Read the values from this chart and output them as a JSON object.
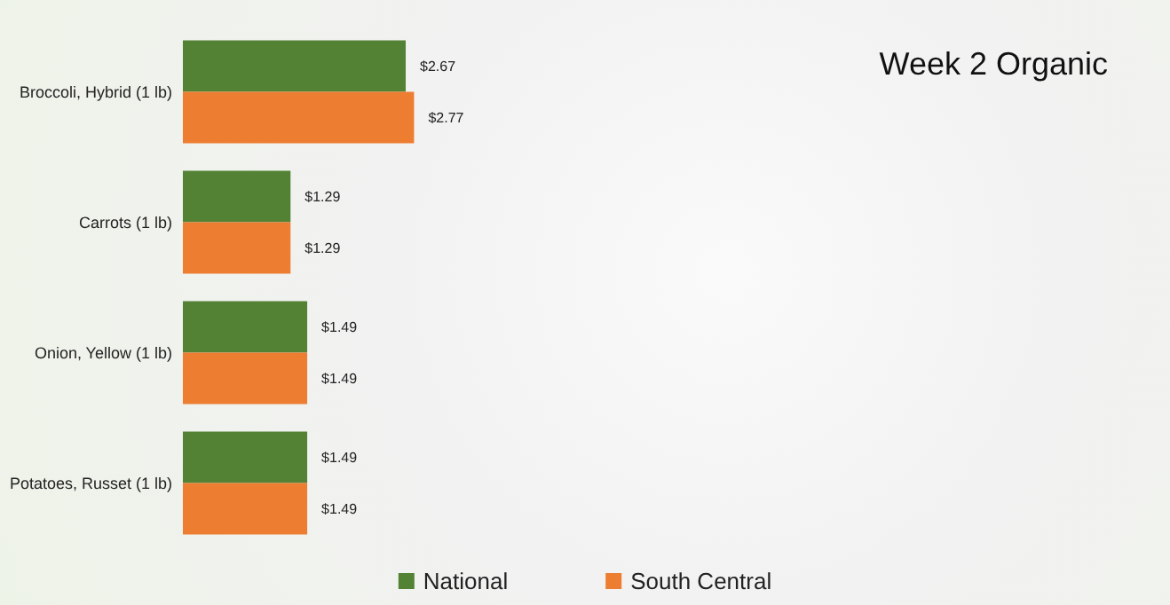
{
  "chart_data": {
    "type": "bar",
    "orientation": "horizontal",
    "title": "Week 2 Organic",
    "categories": [
      "Broccoli, Hybrid (1 lb)",
      "Carrots (1 lb)",
      "Onion, Yellow (1 lb)",
      "Potatoes, Russet (1 lb)"
    ],
    "series": [
      {
        "name": "National",
        "color": "#548235",
        "values": [
          2.67,
          1.29,
          1.49,
          1.49
        ],
        "value_labels": [
          "$2.67",
          "$1.29",
          "$1.49",
          "$1.49"
        ]
      },
      {
        "name": "South Central",
        "color": "#ed7d31",
        "values": [
          2.77,
          1.29,
          1.49,
          1.49
        ],
        "value_labels": [
          "$2.77",
          "$1.29",
          "$1.49",
          "$1.49"
        ]
      }
    ],
    "legend": "bottom"
  }
}
